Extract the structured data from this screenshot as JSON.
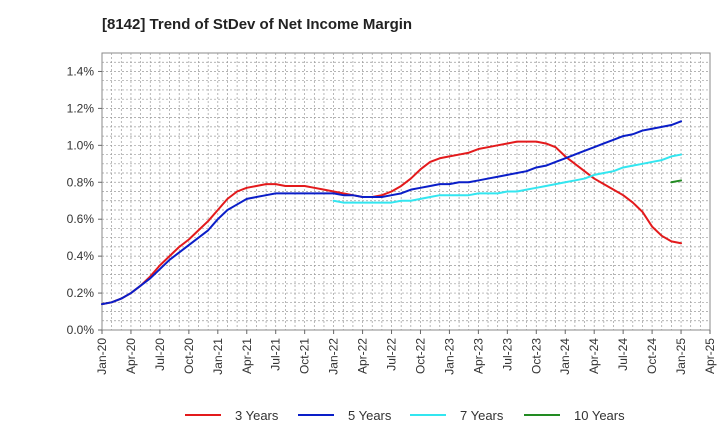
{
  "chart_data": {
    "type": "line",
    "title": "[8142]  Trend of StDev of Net Income Margin",
    "xlabel": "",
    "ylabel": "",
    "x_ticks": [
      "Jan-20",
      "Apr-20",
      "Jul-20",
      "Oct-20",
      "Jan-21",
      "Apr-21",
      "Jul-21",
      "Oct-21",
      "Jan-22",
      "Apr-22",
      "Jul-22",
      "Oct-22",
      "Jan-23",
      "Apr-23",
      "Jul-23",
      "Oct-23",
      "Jan-24",
      "Apr-24",
      "Jul-24",
      "Oct-24",
      "Jan-25",
      "Apr-25"
    ],
    "y_ticks": [
      "0.0%",
      "0.2%",
      "0.4%",
      "0.6%",
      "0.8%",
      "1.0%",
      "1.2%",
      "1.4%"
    ],
    "ylim": [
      0,
      1.5
    ],
    "y_unit": "%",
    "grid": true,
    "legend_position": "bottom",
    "series": [
      {
        "name": "3 Years",
        "color": "#e31a1c",
        "x": [
          "2020-01",
          "2020-02",
          "2020-03",
          "2020-04",
          "2020-05",
          "2020-06",
          "2020-07",
          "2020-08",
          "2020-09",
          "2020-10",
          "2020-11",
          "2020-12",
          "2021-01",
          "2021-02",
          "2021-03",
          "2021-04",
          "2021-05",
          "2021-06",
          "2021-07",
          "2021-08",
          "2021-09",
          "2021-10",
          "2021-11",
          "2021-12",
          "2022-01",
          "2022-02",
          "2022-03",
          "2022-04",
          "2022-05",
          "2022-06",
          "2022-07",
          "2022-08",
          "2022-09",
          "2022-10",
          "2022-11",
          "2022-12",
          "2023-01",
          "2023-02",
          "2023-03",
          "2023-04",
          "2023-05",
          "2023-06",
          "2023-07",
          "2023-08",
          "2023-09",
          "2023-10",
          "2023-11",
          "2023-12",
          "2024-01",
          "2024-02",
          "2024-03",
          "2024-04",
          "2024-05",
          "2024-06",
          "2024-07",
          "2024-08",
          "2024-09",
          "2024-10",
          "2024-11",
          "2024-12",
          "2025-01"
        ],
        "values": [
          0.14,
          0.15,
          0.17,
          0.2,
          0.24,
          0.29,
          0.35,
          0.4,
          0.45,
          0.49,
          0.54,
          0.59,
          0.65,
          0.71,
          0.75,
          0.77,
          0.78,
          0.79,
          0.79,
          0.78,
          0.78,
          0.78,
          0.77,
          0.76,
          0.75,
          0.74,
          0.73,
          0.72,
          0.72,
          0.73,
          0.75,
          0.78,
          0.82,
          0.87,
          0.91,
          0.93,
          0.94,
          0.95,
          0.96,
          0.98,
          0.99,
          1.0,
          1.01,
          1.02,
          1.02,
          1.02,
          1.01,
          0.99,
          0.94,
          0.9,
          0.86,
          0.82,
          0.79,
          0.76,
          0.73,
          0.69,
          0.64,
          0.56,
          0.51,
          0.48,
          0.47
        ]
      },
      {
        "name": "5 Years",
        "color": "#0a1ec8",
        "x": [
          "2020-01",
          "2020-02",
          "2020-03",
          "2020-04",
          "2020-05",
          "2020-06",
          "2020-07",
          "2020-08",
          "2020-09",
          "2020-10",
          "2020-11",
          "2020-12",
          "2021-01",
          "2021-02",
          "2021-03",
          "2021-04",
          "2021-05",
          "2021-06",
          "2021-07",
          "2021-08",
          "2021-09",
          "2021-10",
          "2021-11",
          "2021-12",
          "2022-01",
          "2022-02",
          "2022-03",
          "2022-04",
          "2022-05",
          "2022-06",
          "2022-07",
          "2022-08",
          "2022-09",
          "2022-10",
          "2022-11",
          "2022-12",
          "2023-01",
          "2023-02",
          "2023-03",
          "2023-04",
          "2023-05",
          "2023-06",
          "2023-07",
          "2023-08",
          "2023-09",
          "2023-10",
          "2023-11",
          "2023-12",
          "2024-01",
          "2024-02",
          "2024-03",
          "2024-04",
          "2024-05",
          "2024-06",
          "2024-07",
          "2024-08",
          "2024-09",
          "2024-10",
          "2024-11",
          "2024-12",
          "2025-01"
        ],
        "values": [
          0.14,
          0.15,
          0.17,
          0.2,
          0.24,
          0.28,
          0.33,
          0.38,
          0.42,
          0.46,
          0.5,
          0.54,
          0.6,
          0.65,
          0.68,
          0.71,
          0.72,
          0.73,
          0.74,
          0.74,
          0.74,
          0.74,
          0.74,
          0.74,
          0.74,
          0.73,
          0.73,
          0.72,
          0.72,
          0.72,
          0.73,
          0.74,
          0.76,
          0.77,
          0.78,
          0.79,
          0.79,
          0.8,
          0.8,
          0.81,
          0.82,
          0.83,
          0.84,
          0.85,
          0.86,
          0.88,
          0.89,
          0.91,
          0.93,
          0.95,
          0.97,
          0.99,
          1.01,
          1.03,
          1.05,
          1.06,
          1.08,
          1.09,
          1.1,
          1.11,
          1.13
        ]
      },
      {
        "name": "7 Years",
        "color": "#33e6f0",
        "x": [
          "2022-01",
          "2022-02",
          "2022-03",
          "2022-04",
          "2022-05",
          "2022-06",
          "2022-07",
          "2022-08",
          "2022-09",
          "2022-10",
          "2022-11",
          "2022-12",
          "2023-01",
          "2023-02",
          "2023-03",
          "2023-04",
          "2023-05",
          "2023-06",
          "2023-07",
          "2023-08",
          "2023-09",
          "2023-10",
          "2023-11",
          "2023-12",
          "2024-01",
          "2024-02",
          "2024-03",
          "2024-04",
          "2024-05",
          "2024-06",
          "2024-07",
          "2024-08",
          "2024-09",
          "2024-10",
          "2024-11",
          "2024-12",
          "2025-01"
        ],
        "values": [
          0.7,
          0.69,
          0.69,
          0.69,
          0.69,
          0.69,
          0.69,
          0.7,
          0.7,
          0.71,
          0.72,
          0.73,
          0.73,
          0.73,
          0.73,
          0.74,
          0.74,
          0.74,
          0.75,
          0.75,
          0.76,
          0.77,
          0.78,
          0.79,
          0.8,
          0.81,
          0.82,
          0.84,
          0.85,
          0.86,
          0.88,
          0.89,
          0.9,
          0.91,
          0.92,
          0.94,
          0.95
        ]
      },
      {
        "name": "10 Years",
        "color": "#228b22",
        "x": [
          "2024-12",
          "2025-01"
        ],
        "values": [
          0.8,
          0.81
        ]
      }
    ]
  }
}
